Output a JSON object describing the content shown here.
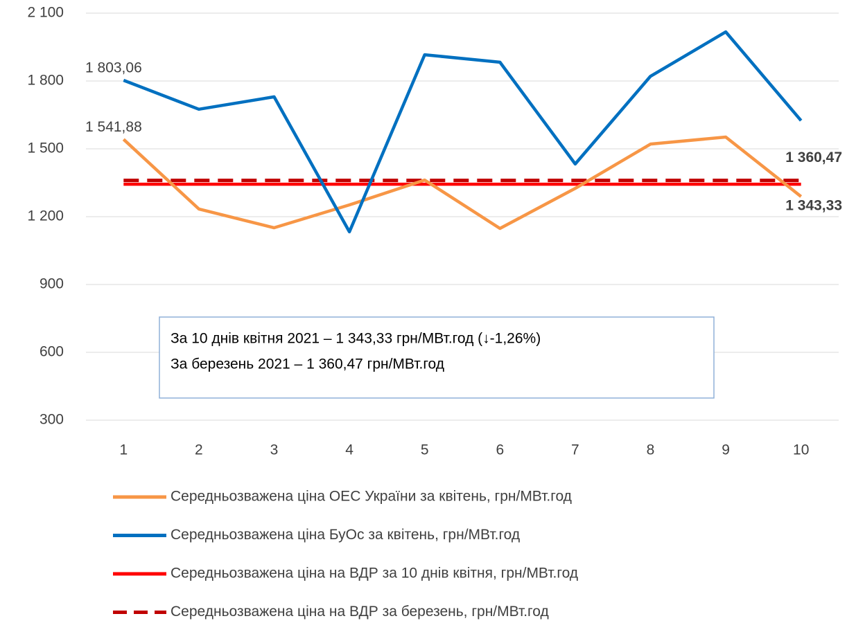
{
  "chart_data": {
    "type": "line",
    "categories": [
      "1",
      "2",
      "3",
      "4",
      "5",
      "6",
      "7",
      "8",
      "9",
      "10"
    ],
    "ylim": [
      300,
      2100
    ],
    "yticks": [
      {
        "value": 300,
        "label": "300"
      },
      {
        "value": 600,
        "label": "600"
      },
      {
        "value": 900,
        "label": "900"
      },
      {
        "value": 1200,
        "label": "1 200"
      },
      {
        "value": 1500,
        "label": "1 500"
      },
      {
        "value": 1800,
        "label": "1 800"
      },
      {
        "value": 2100,
        "label": "2 100"
      }
    ],
    "grid": true,
    "legend": "bottom",
    "series": [
      {
        "name": "Середньозважена ціна ОЕС України за квітень, грн/МВт.год",
        "color": "#f79646",
        "dashed": false,
        "values": [
          1541.88,
          1234,
          1151,
          1252,
          1362,
          1148,
          1325,
          1521,
          1552,
          1289
        ],
        "value_labels": [
          "1 541,88",
          null,
          null,
          null,
          null,
          null,
          null,
          null,
          null,
          null
        ]
      },
      {
        "name": "Середньозважена ціна БуОс за квітень, грн/МВт.год",
        "color": "#0070c0",
        "dashed": false,
        "values": [
          1803.06,
          1675,
          1730,
          1133,
          1916,
          1883,
          1433,
          1821,
          2017,
          1625
        ],
        "value_labels": [
          "1 803,06",
          null,
          null,
          null,
          null,
          null,
          null,
          null,
          null,
          null
        ]
      },
      {
        "name": "Середньозважена ціна на ВДР за 10 днів квітня, грн/МВт.год",
        "color": "#ff0000",
        "dashed": false,
        "values": [
          1343.33,
          1343.33,
          1343.33,
          1343.33,
          1343.33,
          1343.33,
          1343.33,
          1343.33,
          1343.33,
          1343.33
        ],
        "value_labels": [
          null,
          null,
          null,
          null,
          null,
          null,
          null,
          null,
          null,
          "1 343,33"
        ]
      },
      {
        "name": "Середньозважена ціна на ВДР за березень, грн/МВт.год",
        "color": "#c00000",
        "dashed": true,
        "values": [
          1360.47,
          1360.47,
          1360.47,
          1360.47,
          1360.47,
          1360.47,
          1360.47,
          1360.47,
          1360.47,
          1360.47
        ],
        "value_labels": [
          null,
          null,
          null,
          null,
          null,
          null,
          null,
          null,
          null,
          "1 360,47"
        ]
      }
    ],
    "annotations": [
      "За 10 днів квітня 2021 – 1 343,33 грн/МВт.год (↓-1,26%)",
      "За березень 2021 – 1 360,47 грн/МВт.год"
    ]
  }
}
